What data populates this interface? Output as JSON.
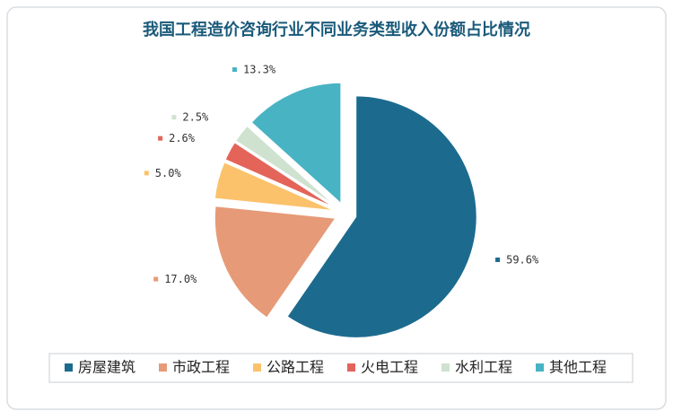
{
  "chart_data": {
    "type": "pie",
    "title": "我国工程造价咨询行业不同业务类型收入份额占比情况",
    "categories": [
      "房屋建筑",
      "市政工程",
      "公路工程",
      "火电工程",
      "水利工程",
      "其他工程"
    ],
    "values": [
      59.6,
      17.0,
      5.0,
      2.6,
      2.5,
      13.3
    ],
    "value_labels": [
      "59.6%",
      "17.0%",
      "5.0%",
      "2.6%",
      "2.5%",
      "13.3%"
    ],
    "colors": [
      "#1c6b8e",
      "#e69a77",
      "#fbc26b",
      "#e4645a",
      "#cfe2cf",
      "#48b3c3"
    ],
    "legend": "bottom"
  }
}
